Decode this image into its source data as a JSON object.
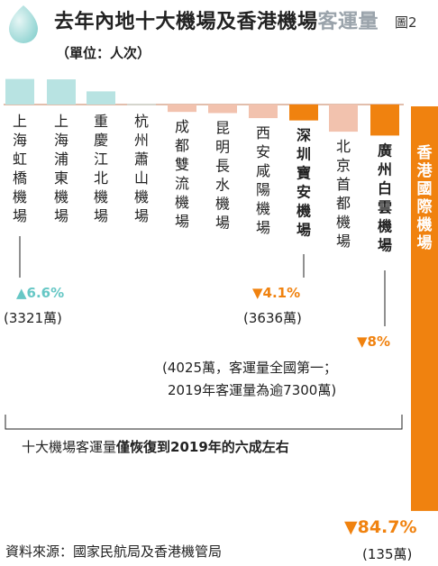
{
  "header": {
    "title_main": "去年內地十大機場及香港機場",
    "title_light": "客運量",
    "figure_no": "圖2",
    "unit": "（單位：人次）"
  },
  "chart_data": {
    "type": "bar",
    "categories": [
      "上海虹橋機場",
      "上海浦東機場",
      "重慶江北機場",
      "杭州蕭山機場",
      "成都雙流機場",
      "昆明長水機場",
      "西安咸陽機場",
      "深圳寶安機場",
      "北京首都機場",
      "廣州白雲機場",
      "香港國際機場"
    ],
    "values": [
      6.6,
      6.5,
      3.4,
      0.1,
      -1.9,
      -2.2,
      -3.5,
      -4.1,
      -7.0,
      -8.0,
      -84.7
    ],
    "value_unit": "%",
    "ylim": [
      -84.7,
      6.6
    ],
    "highlight": [
      "深圳寶安機場",
      "廣州白雲機場",
      "香港國際機場"
    ],
    "colors": {
      "increase": "#b8e3e2",
      "decrease": "#f2c2ae",
      "highlight": "#f0820f",
      "baseline": "#d9a890"
    },
    "callouts": [
      {
        "airport": "上海虹橋機場",
        "change": "▲6.6%",
        "passengers": "(3321萬)"
      },
      {
        "airport": "深圳寶安機場",
        "change": "▼4.1%",
        "passengers": "(3636萬)"
      },
      {
        "airport": "廣州白雲機場",
        "change": "▼8%",
        "note_line1": "(4025萬，客運量全國第一；",
        "note_line2": "2019年客運量為逾7300萬)"
      },
      {
        "airport": "香港國際機場",
        "change": "▼84.7%",
        "passengers": "(135萬)"
      }
    ]
  },
  "conclusion": {
    "prefix": "十大機場客運量",
    "bold": "僅恢復到2019年的六成左右"
  },
  "source": "資料來源：國家民航局及香港機管局"
}
